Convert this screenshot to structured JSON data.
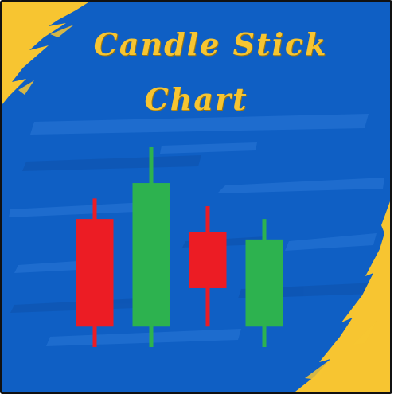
{
  "title": {
    "line1": "Candle Stick",
    "line2": "Chart"
  },
  "colors": {
    "background": "#0f5fc4",
    "accent_yellow": "#f7c531",
    "bullish": "#2db24f",
    "bearish": "#ec1c24"
  },
  "candles": [
    {
      "direction": "bearish",
      "open": 0.72,
      "close": 0.3,
      "high": 0.8,
      "low": 0.22
    },
    {
      "direction": "bullish",
      "open": 0.3,
      "close": 0.86,
      "high": 1.0,
      "low": 0.22
    },
    {
      "direction": "bearish",
      "open": 0.67,
      "close": 0.45,
      "high": 0.77,
      "low": 0.3
    },
    {
      "direction": "bullish",
      "open": 0.3,
      "close": 0.64,
      "high": 0.72,
      "low": 0.22
    }
  ]
}
